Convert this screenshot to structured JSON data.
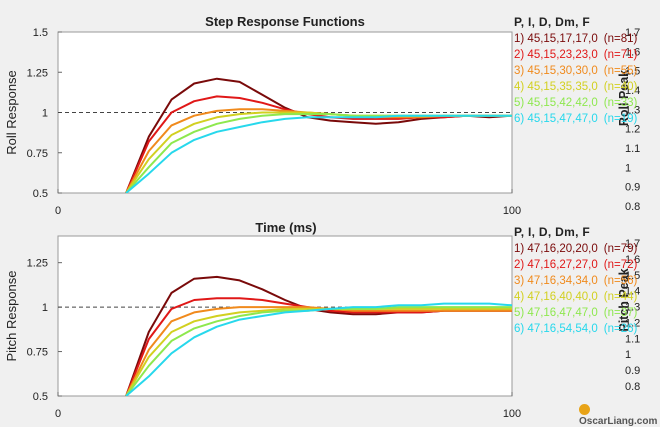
{
  "watermark": "OscarLiang.com",
  "chart_data": [
    {
      "type": "line",
      "title": "Step Response Functions",
      "xlabel": "Time (ms)",
      "ylabel": "Roll Response",
      "xlim": [
        0,
        100
      ],
      "ylim": [
        0.5,
        1.5
      ],
      "xticks": [
        "0",
        "100"
      ],
      "yticks": [
        "0.5",
        "0.75",
        "1",
        "1.25",
        "1.5"
      ],
      "reference_line": 1,
      "legend_header": "P, I, D, Dm, F",
      "right_axis_label": "Roll Peak",
      "right_ticks": [
        "0.8",
        "0.9",
        "1",
        "1.1",
        "1.2",
        "1.3",
        "1.4",
        "1.5",
        "1.6",
        "1.7"
      ],
      "series": [
        {
          "label": "1) 45,15,17,17,0",
          "n": "(n=81)",
          "color": "#7a0a0a",
          "x": [
            15,
            20,
            25,
            30,
            35,
            40,
            45,
            50,
            55,
            60,
            65,
            70,
            75,
            80,
            85,
            90,
            95,
            100
          ],
          "y": [
            0.5,
            0.85,
            1.08,
            1.18,
            1.21,
            1.19,
            1.11,
            1.03,
            0.97,
            0.95,
            0.94,
            0.93,
            0.94,
            0.96,
            0.97,
            0.98,
            0.97,
            0.98
          ]
        },
        {
          "label": "2) 45,15,23,23,0",
          "n": "(n=71)",
          "color": "#e01818",
          "x": [
            15,
            20,
            25,
            30,
            35,
            40,
            45,
            50,
            55,
            60,
            65,
            70,
            75,
            80,
            85,
            90,
            95,
            100
          ],
          "y": [
            0.5,
            0.82,
            1.0,
            1.07,
            1.1,
            1.09,
            1.06,
            1.02,
            0.99,
            0.97,
            0.96,
            0.96,
            0.96,
            0.97,
            0.97,
            0.98,
            0.98,
            0.98
          ]
        },
        {
          "label": "3) 45,15,30,30,0",
          "n": "(n=55)",
          "color": "#f08a1c",
          "x": [
            15,
            20,
            25,
            30,
            35,
            40,
            45,
            50,
            55,
            60,
            65,
            70,
            75,
            80,
            85,
            90,
            95,
            100
          ],
          "y": [
            0.5,
            0.76,
            0.92,
            0.98,
            1.01,
            1.02,
            1.02,
            1.01,
            1.0,
            0.99,
            0.98,
            0.97,
            0.97,
            0.97,
            0.98,
            0.98,
            0.98,
            0.98
          ]
        },
        {
          "label": "4) 45,15,35,35,0",
          "n": "(n=40)",
          "color": "#d2d020",
          "x": [
            15,
            20,
            25,
            30,
            35,
            40,
            45,
            50,
            55,
            60,
            65,
            70,
            75,
            80,
            85,
            90,
            95,
            100
          ],
          "y": [
            0.5,
            0.71,
            0.86,
            0.93,
            0.97,
            0.99,
            1.0,
            1.0,
            1.0,
            0.99,
            0.98,
            0.98,
            0.98,
            0.98,
            0.98,
            0.98,
            0.98,
            0.98
          ]
        },
        {
          "label": "5) 45,15,42,42,0",
          "n": "(n=33)",
          "color": "#8ee84e",
          "x": [
            15,
            20,
            25,
            30,
            35,
            40,
            45,
            50,
            55,
            60,
            65,
            70,
            75,
            80,
            85,
            90,
            95,
            100
          ],
          "y": [
            0.5,
            0.66,
            0.81,
            0.88,
            0.93,
            0.96,
            0.98,
            0.99,
            0.99,
            0.99,
            0.98,
            0.98,
            0.98,
            0.98,
            0.98,
            0.98,
            0.98,
            0.98
          ]
        },
        {
          "label": "6) 45,15,47,47,0",
          "n": "(n=19)",
          "color": "#27d8ec",
          "x": [
            15,
            20,
            25,
            30,
            35,
            40,
            45,
            50,
            55,
            60,
            65,
            70,
            75,
            80,
            85,
            90,
            95,
            100
          ],
          "y": [
            0.5,
            0.62,
            0.75,
            0.83,
            0.88,
            0.91,
            0.94,
            0.96,
            0.97,
            0.97,
            0.97,
            0.97,
            0.98,
            0.98,
            0.98,
            0.98,
            0.98,
            0.98
          ]
        }
      ]
    },
    {
      "type": "line",
      "title": "",
      "xlabel": "",
      "ylabel": "Pitch Response",
      "xlim": [
        0,
        100
      ],
      "ylim": [
        0.5,
        1.4
      ],
      "xticks": [
        "0",
        "100"
      ],
      "yticks": [
        "0.5",
        "0.75",
        "1",
        "1.25"
      ],
      "reference_line": 1,
      "legend_header": "P, I, D, Dm, F",
      "right_axis_label": "Pitch Peak",
      "right_ticks": [
        "0.8",
        "0.9",
        "1",
        "1.1",
        "1.2",
        "1.3",
        "1.4",
        "1.5",
        "1.6",
        "1.7"
      ],
      "series": [
        {
          "label": "1) 47,16,20,20,0",
          "n": "(n=79)",
          "color": "#7a0a0a",
          "x": [
            15,
            20,
            25,
            30,
            35,
            40,
            45,
            50,
            55,
            60,
            65,
            70,
            75,
            80,
            85,
            90,
            95,
            100
          ],
          "y": [
            0.5,
            0.86,
            1.08,
            1.16,
            1.17,
            1.15,
            1.1,
            1.04,
            0.99,
            0.97,
            0.96,
            0.96,
            0.97,
            0.97,
            0.98,
            0.98,
            0.98,
            0.98
          ]
        },
        {
          "label": "2) 47,16,27,27,0",
          "n": "(n=72)",
          "color": "#e01818",
          "x": [
            15,
            20,
            25,
            30,
            35,
            40,
            45,
            50,
            55,
            60,
            65,
            70,
            75,
            80,
            85,
            90,
            95,
            100
          ],
          "y": [
            0.5,
            0.82,
            0.99,
            1.04,
            1.05,
            1.05,
            1.04,
            1.02,
            1.0,
            0.98,
            0.97,
            0.97,
            0.97,
            0.97,
            0.98,
            0.98,
            0.98,
            0.98
          ]
        },
        {
          "label": "3) 47,16,34,34,0",
          "n": "(n=56)",
          "color": "#f08a1c",
          "x": [
            15,
            20,
            25,
            30,
            35,
            40,
            45,
            50,
            55,
            60,
            65,
            70,
            75,
            80,
            85,
            90,
            95,
            100
          ],
          "y": [
            0.5,
            0.76,
            0.92,
            0.97,
            0.99,
            1.0,
            1.0,
            1.0,
            1.0,
            0.99,
            0.98,
            0.98,
            0.98,
            0.98,
            0.98,
            0.98,
            0.98,
            0.98
          ]
        },
        {
          "label": "4) 47,16,40,40,0",
          "n": "(n=44)",
          "color": "#d2d020",
          "x": [
            15,
            20,
            25,
            30,
            35,
            40,
            45,
            50,
            55,
            60,
            65,
            70,
            75,
            80,
            85,
            90,
            95,
            100
          ],
          "y": [
            0.5,
            0.72,
            0.86,
            0.92,
            0.95,
            0.97,
            0.98,
            0.99,
            0.99,
            0.99,
            0.99,
            0.99,
            0.99,
            0.99,
            0.99,
            0.99,
            0.99,
            0.99
          ]
        },
        {
          "label": "5) 47,16,47,47,0",
          "n": "(n=37)",
          "color": "#8ee84e",
          "x": [
            15,
            20,
            25,
            30,
            35,
            40,
            45,
            50,
            55,
            60,
            65,
            70,
            75,
            80,
            85,
            90,
            95,
            100
          ],
          "y": [
            0.5,
            0.67,
            0.81,
            0.88,
            0.92,
            0.95,
            0.97,
            0.98,
            0.98,
            0.99,
            0.99,
            0.99,
            1.0,
            1.0,
            1.0,
            1.0,
            1.0,
            1.0
          ]
        },
        {
          "label": "6) 47,16,54,54,0",
          "n": "(n=26)",
          "color": "#27d8ec",
          "x": [
            15,
            20,
            25,
            30,
            35,
            40,
            45,
            50,
            55,
            60,
            65,
            70,
            75,
            80,
            85,
            90,
            95,
            100
          ],
          "y": [
            0.5,
            0.61,
            0.74,
            0.83,
            0.89,
            0.93,
            0.95,
            0.97,
            0.98,
            0.99,
            1.0,
            1.0,
            1.01,
            1.01,
            1.02,
            1.02,
            1.02,
            1.01
          ]
        }
      ]
    }
  ]
}
